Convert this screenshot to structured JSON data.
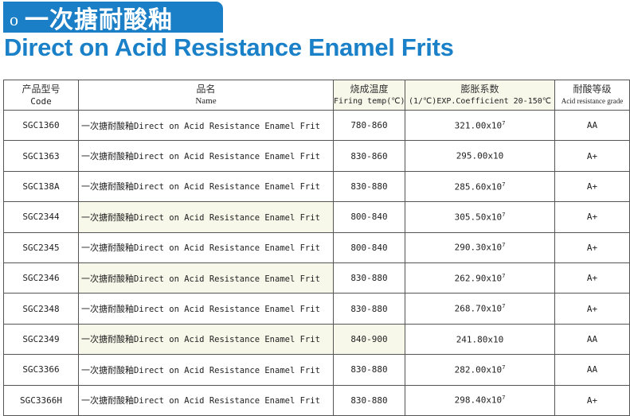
{
  "banner": {
    "bullet": "o",
    "title_zh": "一次搪耐酸釉"
  },
  "title_en": "Direct on Acid Resistance Enamel Frits",
  "table": {
    "headers": [
      {
        "zh": "产品型号",
        "en": "Code"
      },
      {
        "zh": "品名",
        "en": "Name"
      },
      {
        "zh": "烧成温度",
        "en": "Firing temp(℃)"
      },
      {
        "zh": "膨胀系数",
        "en": "(1/℃)EXP.Coefficient 20-150℃"
      },
      {
        "zh": "耐酸等级",
        "en": "Acid resistance grade"
      }
    ],
    "name_zh": "一次搪耐酸釉",
    "name_en": "Direct on Acid Resistance Enamel Frit",
    "rows": [
      {
        "code": "SGC1360",
        "temp": "780-860",
        "coef": "321.00x10",
        "exp": "7",
        "grade": "AA"
      },
      {
        "code": "SGC1363",
        "temp": "830-860",
        "coef": "295.00x10",
        "exp": "",
        "grade": "A+"
      },
      {
        "code": "SGC138A",
        "temp": "830-880",
        "coef": "285.60x10",
        "exp": "7",
        "grade": "A+"
      },
      {
        "code": "SGC2344",
        "temp": "800-840",
        "coef": "305.50x10",
        "exp": "7",
        "grade": "A+"
      },
      {
        "code": "SGC2345",
        "temp": "800-840",
        "coef": "290.30x10",
        "exp": "7",
        "grade": "A+"
      },
      {
        "code": "SGC2346",
        "temp": "830-880",
        "coef": "262.90x10",
        "exp": "7",
        "grade": "A+"
      },
      {
        "code": "SGC2348",
        "temp": "830-880",
        "coef": "268.70x10",
        "exp": "7",
        "grade": "A+"
      },
      {
        "code": "SGC2349",
        "temp": "840-900",
        "coef": "241.80x10",
        "exp": "",
        "grade": "AA"
      },
      {
        "code": "SGC3366",
        "temp": "830-880",
        "coef": "282.00x10",
        "exp": "7",
        "grade": "AA"
      },
      {
        "code": "SGC3366H",
        "temp": "830-880",
        "coef": "298.40x10",
        "exp": "7",
        "grade": "A+"
      }
    ]
  },
  "colors": {
    "brand_blue": "#1a7fc6",
    "highlight_cream": "#f7f7ea"
  }
}
